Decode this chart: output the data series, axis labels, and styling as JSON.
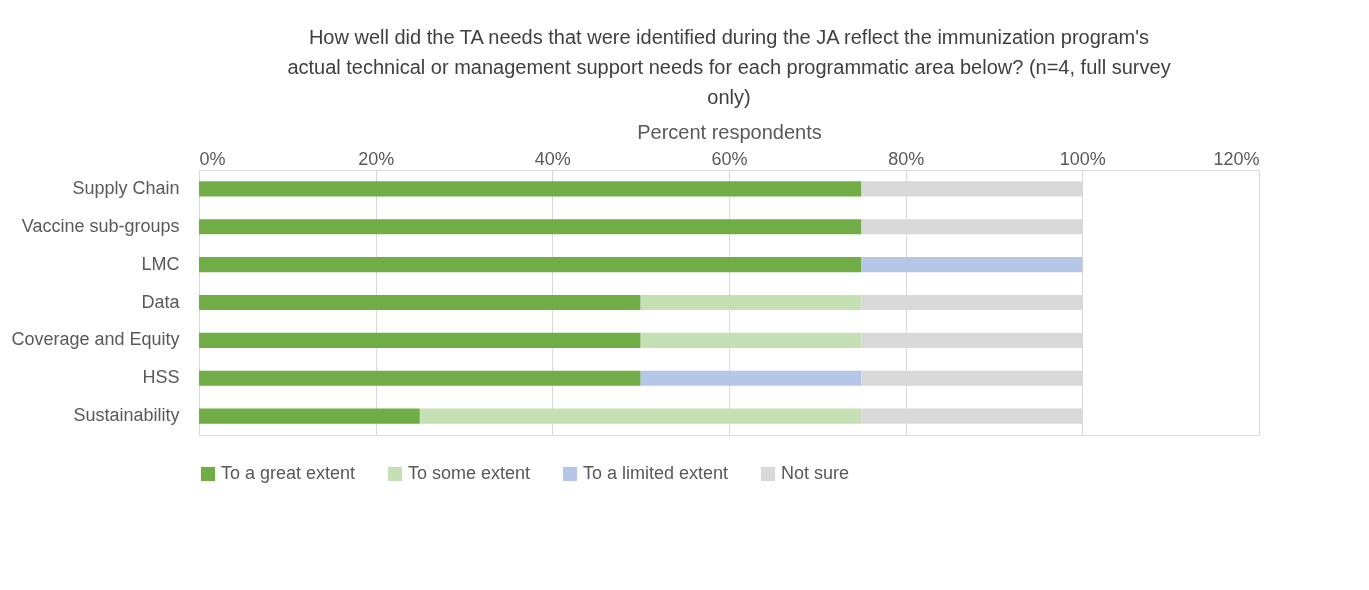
{
  "chart_data": {
    "type": "bar",
    "orientation": "horizontal",
    "stacked": true,
    "title": "How well did the TA needs that were identified during the JA reflect the immunization program's actual technical or management support needs for each programmatic area below? (n=4, full survey only)",
    "xlabel": "Percent respondents",
    "categories": [
      "Supply Chain",
      "Vaccine sub-groups",
      "LMC",
      "Data",
      "Coverage and Equity",
      "HSS",
      "Sustainability"
    ],
    "series": [
      {
        "name": "To a great extent",
        "color": "#70ad47",
        "values": [
          75,
          75,
          75,
          50,
          50,
          50,
          25
        ]
      },
      {
        "name": "To some extent",
        "color": "#c5e0b4",
        "values": [
          0,
          0,
          0,
          25,
          25,
          0,
          50
        ]
      },
      {
        "name": "To a limited extent",
        "color": "#b4c7e7",
        "values": [
          0,
          0,
          25,
          0,
          0,
          25,
          0
        ]
      },
      {
        "name": "Not sure",
        "color": "#d9d9d9",
        "values": [
          25,
          25,
          0,
          25,
          25,
          25,
          25
        ]
      }
    ],
    "xlim": [
      0,
      120
    ],
    "xticks": [
      {
        "value": 0,
        "label": "0%"
      },
      {
        "value": 20,
        "label": "20%"
      },
      {
        "value": 40,
        "label": "40%"
      },
      {
        "value": 60,
        "label": "60%"
      },
      {
        "value": 80,
        "label": "80%"
      },
      {
        "value": 100,
        "label": "100%"
      },
      {
        "value": 120,
        "label": "120%"
      }
    ],
    "grid": "x",
    "legend": "bottom"
  }
}
